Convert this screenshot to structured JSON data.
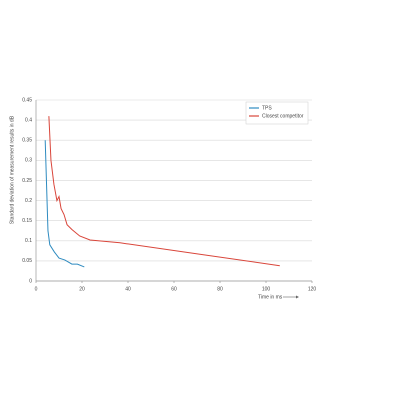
{
  "chart_data": {
    "type": "line",
    "x_label": "Time in ms",
    "y_label": "Standard deviation of measurement results in dB",
    "xlim": [
      0,
      120
    ],
    "xticks": [
      0,
      20,
      40,
      60,
      80,
      100,
      120
    ],
    "ylim": [
      0,
      0.45
    ],
    "yticks": [
      0,
      0.05,
      0.1,
      0.15,
      0.2,
      0.25,
      0.3,
      0.35,
      0.4,
      0.45
    ],
    "grid": true,
    "legend": "upper right",
    "series": [
      {
        "name": "TPS",
        "color": "#2e8bc0",
        "x": [
          4,
          4.8,
          5.2,
          6,
          8,
          10,
          12.6,
          15.6,
          18,
          21
        ],
        "values": [
          0.35,
          0.2,
          0.125,
          0.09,
          0.072,
          0.057,
          0.052,
          0.042,
          0.042,
          0.035
        ]
      },
      {
        "name": "Closest competitor",
        "color": "#d9453a",
        "x": [
          5.6,
          6.5,
          7.8,
          9.1,
          10,
          10.9,
          12.2,
          13.5,
          15.6,
          19,
          23.5,
          36.5,
          106
        ],
        "values": [
          0.41,
          0.3,
          0.24,
          0.2,
          0.21,
          0.18,
          0.165,
          0.14,
          0.128,
          0.112,
          0.102,
          0.095,
          0.038
        ]
      }
    ]
  }
}
